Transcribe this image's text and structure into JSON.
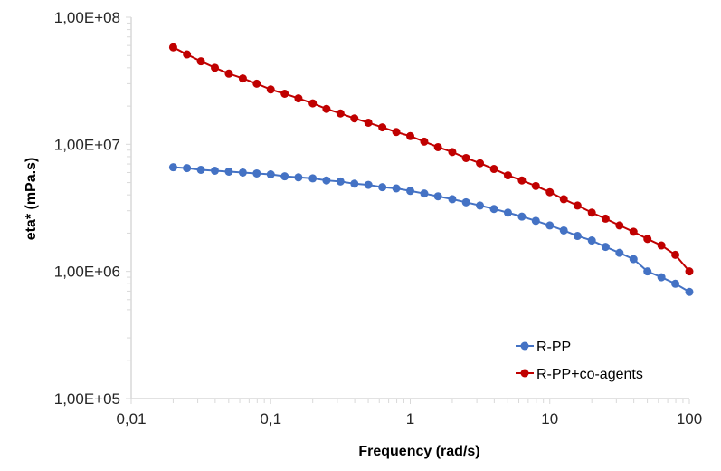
{
  "chart_data": {
    "type": "line",
    "title": "",
    "xlabel": "Frequency (rad/s)",
    "ylabel": "eta* (mPa.s)",
    "xscale": "log",
    "yscale": "log",
    "xlim": [
      0.01,
      100
    ],
    "ylim": [
      100000,
      100000000
    ],
    "x_ticks": [
      {
        "value": 0.01,
        "label": "0,01"
      },
      {
        "value": 0.1,
        "label": "0,1"
      },
      {
        "value": 1,
        "label": "1"
      },
      {
        "value": 10,
        "label": "10"
      },
      {
        "value": 100,
        "label": "100"
      }
    ],
    "y_ticks": [
      {
        "value": 100000,
        "label": "1,00E+05"
      },
      {
        "value": 1000000,
        "label": "1,00E+06"
      },
      {
        "value": 10000000,
        "label": "1,00E+07"
      },
      {
        "value": 100000000,
        "label": "1,00E+08"
      }
    ],
    "grid": false,
    "legend_position": "bottom-right",
    "x": [
      0.02,
      0.0251,
      0.0316,
      0.0398,
      0.0501,
      0.0631,
      0.0794,
      0.1,
      0.126,
      0.158,
      0.2,
      0.251,
      0.316,
      0.398,
      0.501,
      0.631,
      0.794,
      1,
      1.26,
      1.58,
      2,
      2.51,
      3.16,
      3.98,
      5.01,
      6.31,
      7.94,
      10,
      12.6,
      15.8,
      20,
      25.1,
      31.6,
      39.8,
      50.1,
      63.1,
      79.4,
      100
    ],
    "series": [
      {
        "name": "R-PP",
        "color": "#4472C4",
        "values": [
          6600000,
          6500000,
          6300000,
          6200000,
          6100000,
          6000000,
          5900000,
          5800000,
          5600000,
          5500000,
          5400000,
          5200000,
          5100000,
          4900000,
          4800000,
          4600000,
          4500000,
          4300000,
          4100000,
          3900000,
          3700000,
          3500000,
          3300000,
          3100000,
          2900000,
          2700000,
          2500000,
          2300000,
          2100000,
          1900000,
          1750000,
          1560000,
          1400000,
          1250000,
          1000000,
          900000,
          800000,
          690000
        ]
      },
      {
        "name": "R-PP+co-agents",
        "color": "#C00000",
        "values": [
          58000000,
          51000000,
          45000000,
          40000000,
          36000000,
          33000000,
          30000000,
          27000000,
          25000000,
          23000000,
          21000000,
          19000000,
          17500000,
          16000000,
          14800000,
          13600000,
          12500000,
          11600000,
          10500000,
          9500000,
          8700000,
          7800000,
          7100000,
          6400000,
          5700000,
          5200000,
          4700000,
          4200000,
          3700000,
          3300000,
          2900000,
          2600000,
          2300000,
          2050000,
          1800000,
          1600000,
          1350000,
          1000000
        ]
      }
    ]
  }
}
